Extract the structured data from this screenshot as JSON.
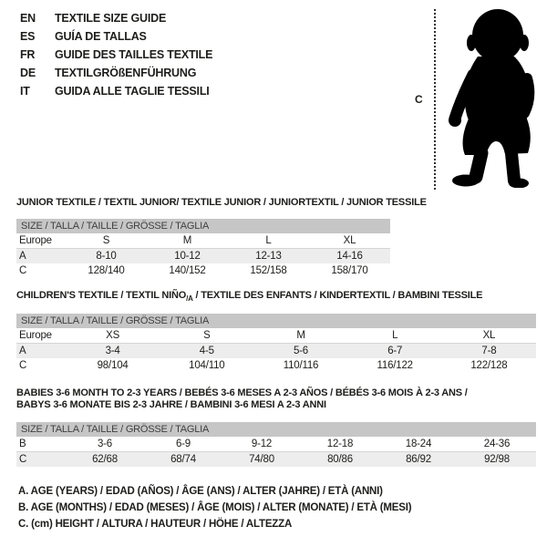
{
  "languages": [
    {
      "code": "EN",
      "title": "TEXTILE SIZE GUIDE"
    },
    {
      "code": "ES",
      "title": "GUÍA DE TALLAS"
    },
    {
      "code": "FR",
      "title": "GUIDE DES TAILLES TEXTILE"
    },
    {
      "code": "DE",
      "title": "TEXTILGRÖßENFÜHRUNG"
    },
    {
      "code": "IT",
      "title": "GUIDA ALLE TAGLIE TESSILI"
    }
  ],
  "figure": {
    "height_label": "C"
  },
  "tables": [
    {
      "title": "JUNIOR TEXTILE / TEXTIL JUNIOR/ TEXTILE JUNIOR / JUNIORTEXTIL / JUNIOR TESSILE",
      "size_header": "SIZE / TALLA / TAILLE / GRÖSSE / TAGLIA",
      "rows": [
        {
          "label": "Europe",
          "values": [
            "S",
            "M",
            "L",
            "XL"
          ]
        },
        {
          "label": "A",
          "values": [
            "8-10",
            "10-12",
            "12-13",
            "14-16"
          ]
        },
        {
          "label": "C",
          "values": [
            "128/140",
            "140/152",
            "152/158",
            "158/170"
          ]
        }
      ]
    },
    {
      "title_pre": "CHILDREN'S TEXTILE / TEXTIL NIÑO",
      "title_sub": "/A",
      "title_post": " / TEXTILE DES ENFANTS / KINDERTEXTIL / BAMBINI TESSILE",
      "size_header": "SIZE / TALLA / TAILLE / GRÖSSE / TAGLIA",
      "rows": [
        {
          "label": "Europe",
          "values": [
            "XS",
            "S",
            "M",
            "L",
            "XL"
          ]
        },
        {
          "label": "A",
          "values": [
            "3-4",
            "4-5",
            "5-6",
            "6-7",
            "7-8"
          ]
        },
        {
          "label": "C",
          "values": [
            "98/104",
            "104/110",
            "110/116",
            "116/122",
            "122/128"
          ]
        }
      ]
    },
    {
      "title_line1": "BABIES 3-6 MONTH TO 2-3 YEARS / BEBÉS 3-6 MESES A 2-3 AÑOS / BÉBÉS 3-6 MOIS À 2-3 ANS /",
      "title_line2": "BABYS 3-6 MONATE BIS 2-3 JAHRE / BAMBINI 3-6 MESI A 2-3 ANNI",
      "size_header": "SIZE / TALLA / TAILLE / GRÖSSE / TAGLIA",
      "rows": [
        {
          "label": "B",
          "values": [
            "3-6",
            "6-9",
            "9-12",
            "12-18",
            "18-24",
            "24-36"
          ]
        },
        {
          "label": "C",
          "values": [
            "62/68",
            "68/74",
            "74/80",
            "80/86",
            "86/92",
            "92/98"
          ]
        }
      ]
    }
  ],
  "notes": [
    "A. AGE (YEARS) / EDAD (AÑOS) / ÂGE (ANS) / ALTER (JAHRE) / ETÀ (ANNI)",
    "B. AGE (MONTHS) / EDAD (MESES) / ÂGE (MOIS) / ALTER (MONATE) / ETÀ (MESI)",
    "C. (cm) HEIGHT / ALTURA / HAUTEUR / HÖHE / ALTEZZA"
  ],
  "colors": {
    "header_bar": "#c6c6c6",
    "row_stripe": "#ededed",
    "divider": "#d5d5d5",
    "text": "#1d1d1b",
    "silhouette": "#000000"
  }
}
